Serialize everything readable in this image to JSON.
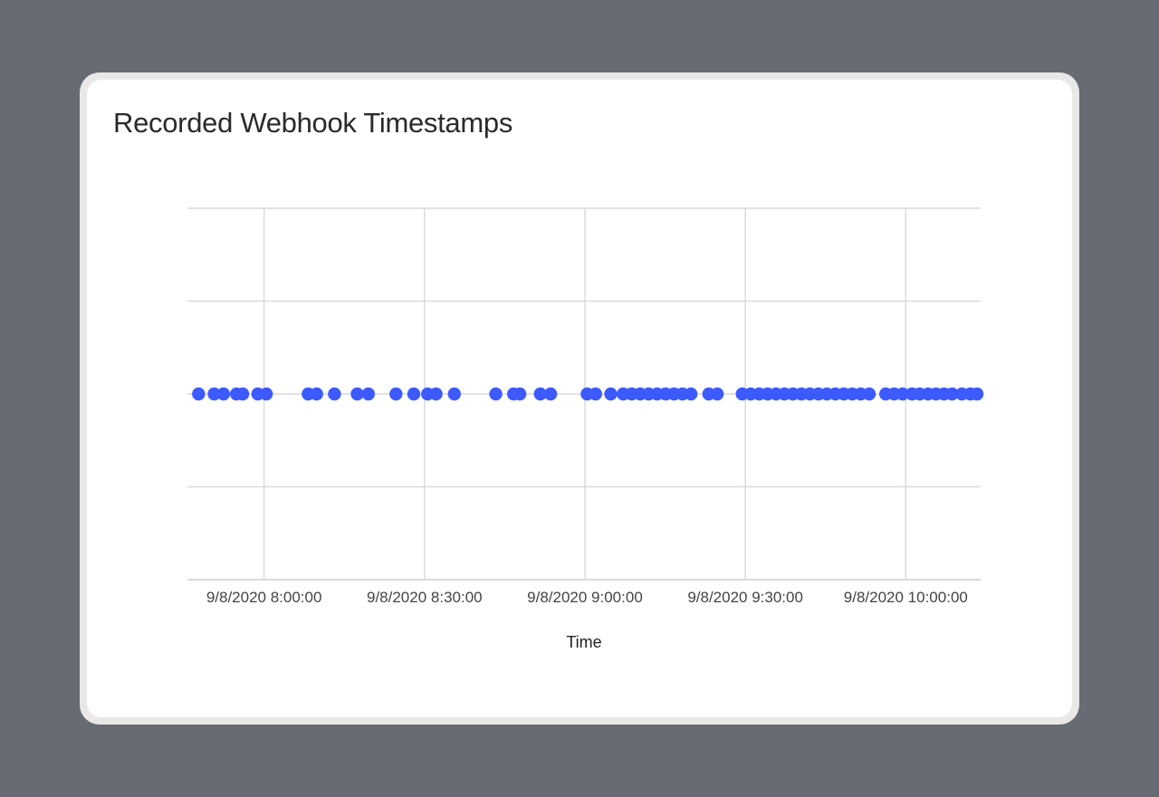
{
  "chart_data": {
    "type": "scatter",
    "title": "Recorded Webhook Timestamps",
    "xlabel": "Time",
    "ylabel": "",
    "x_ticks": [
      {
        "label": "9/8/2020 8:00:00",
        "value": "2020-09-08T08:00:00"
      },
      {
        "label": "9/8/2020 8:30:00",
        "value": "2020-09-08T08:30:00"
      },
      {
        "label": "9/8/2020 9:00:00",
        "value": "2020-09-08T09:00:00"
      },
      {
        "label": "9/8/2020 9:30:00",
        "value": "2020-09-08T09:30:00"
      },
      {
        "label": "9/8/2020 10:00:00",
        "value": "2020-09-08T10:00:00"
      }
    ],
    "xlim": [
      "2020-09-08T07:45:40",
      "2020-09-08T10:14:00"
    ],
    "ylim": [
      -2,
      2
    ],
    "grid": true,
    "legend": "none",
    "colors": {
      "points": "#3d5afe",
      "grid": "#d9d9d9"
    },
    "series": [
      {
        "y": 0,
        "x": [
          "2020-09-08T07:47:45",
          "2020-09-08T07:50:40",
          "2020-09-08T07:52:25",
          "2020-09-08T07:54:50",
          "2020-09-08T07:56:00",
          "2020-09-08T07:58:50",
          "2020-09-08T08:00:25",
          "2020-09-08T08:08:15",
          "2020-09-08T08:09:50",
          "2020-09-08T08:13:10",
          "2020-09-08T08:17:25",
          "2020-09-08T08:19:30",
          "2020-09-08T08:24:40",
          "2020-09-08T08:28:00",
          "2020-09-08T08:30:35",
          "2020-09-08T08:32:10",
          "2020-09-08T08:35:35",
          "2020-09-08T08:43:20",
          "2020-09-08T08:46:40",
          "2020-09-08T08:47:50",
          "2020-09-08T08:51:40",
          "2020-09-08T08:53:35",
          "2020-09-08T09:00:25",
          "2020-09-08T09:02:00",
          "2020-09-08T09:04:50",
          "2020-09-08T09:07:10",
          "2020-09-08T09:08:45",
          "2020-09-08T09:10:20",
          "2020-09-08T09:11:55",
          "2020-09-08T09:13:30",
          "2020-09-08T09:15:05",
          "2020-09-08T09:16:40",
          "2020-09-08T09:18:15",
          "2020-09-08T09:19:50",
          "2020-09-08T09:23:10",
          "2020-09-08T09:24:45",
          "2020-09-08T09:29:25",
          "2020-09-08T09:31:00",
          "2020-09-08T09:32:35",
          "2020-09-08T09:34:10",
          "2020-09-08T09:35:45",
          "2020-09-08T09:37:20",
          "2020-09-08T09:38:55",
          "2020-09-08T09:40:30",
          "2020-09-08T09:42:05",
          "2020-09-08T09:43:40",
          "2020-09-08T09:45:15",
          "2020-09-08T09:46:50",
          "2020-09-08T09:48:25",
          "2020-09-08T09:50:00",
          "2020-09-08T09:51:35",
          "2020-09-08T09:53:10",
          "2020-09-08T09:56:15",
          "2020-09-08T09:57:50",
          "2020-09-08T09:59:25",
          "2020-09-08T10:01:10",
          "2020-09-08T10:02:35",
          "2020-09-08T10:04:10",
          "2020-09-08T10:05:40",
          "2020-09-08T10:07:10",
          "2020-09-08T10:08:40",
          "2020-09-08T10:10:30",
          "2020-09-08T10:12:05",
          "2020-09-08T10:13:20"
        ]
      }
    ]
  }
}
